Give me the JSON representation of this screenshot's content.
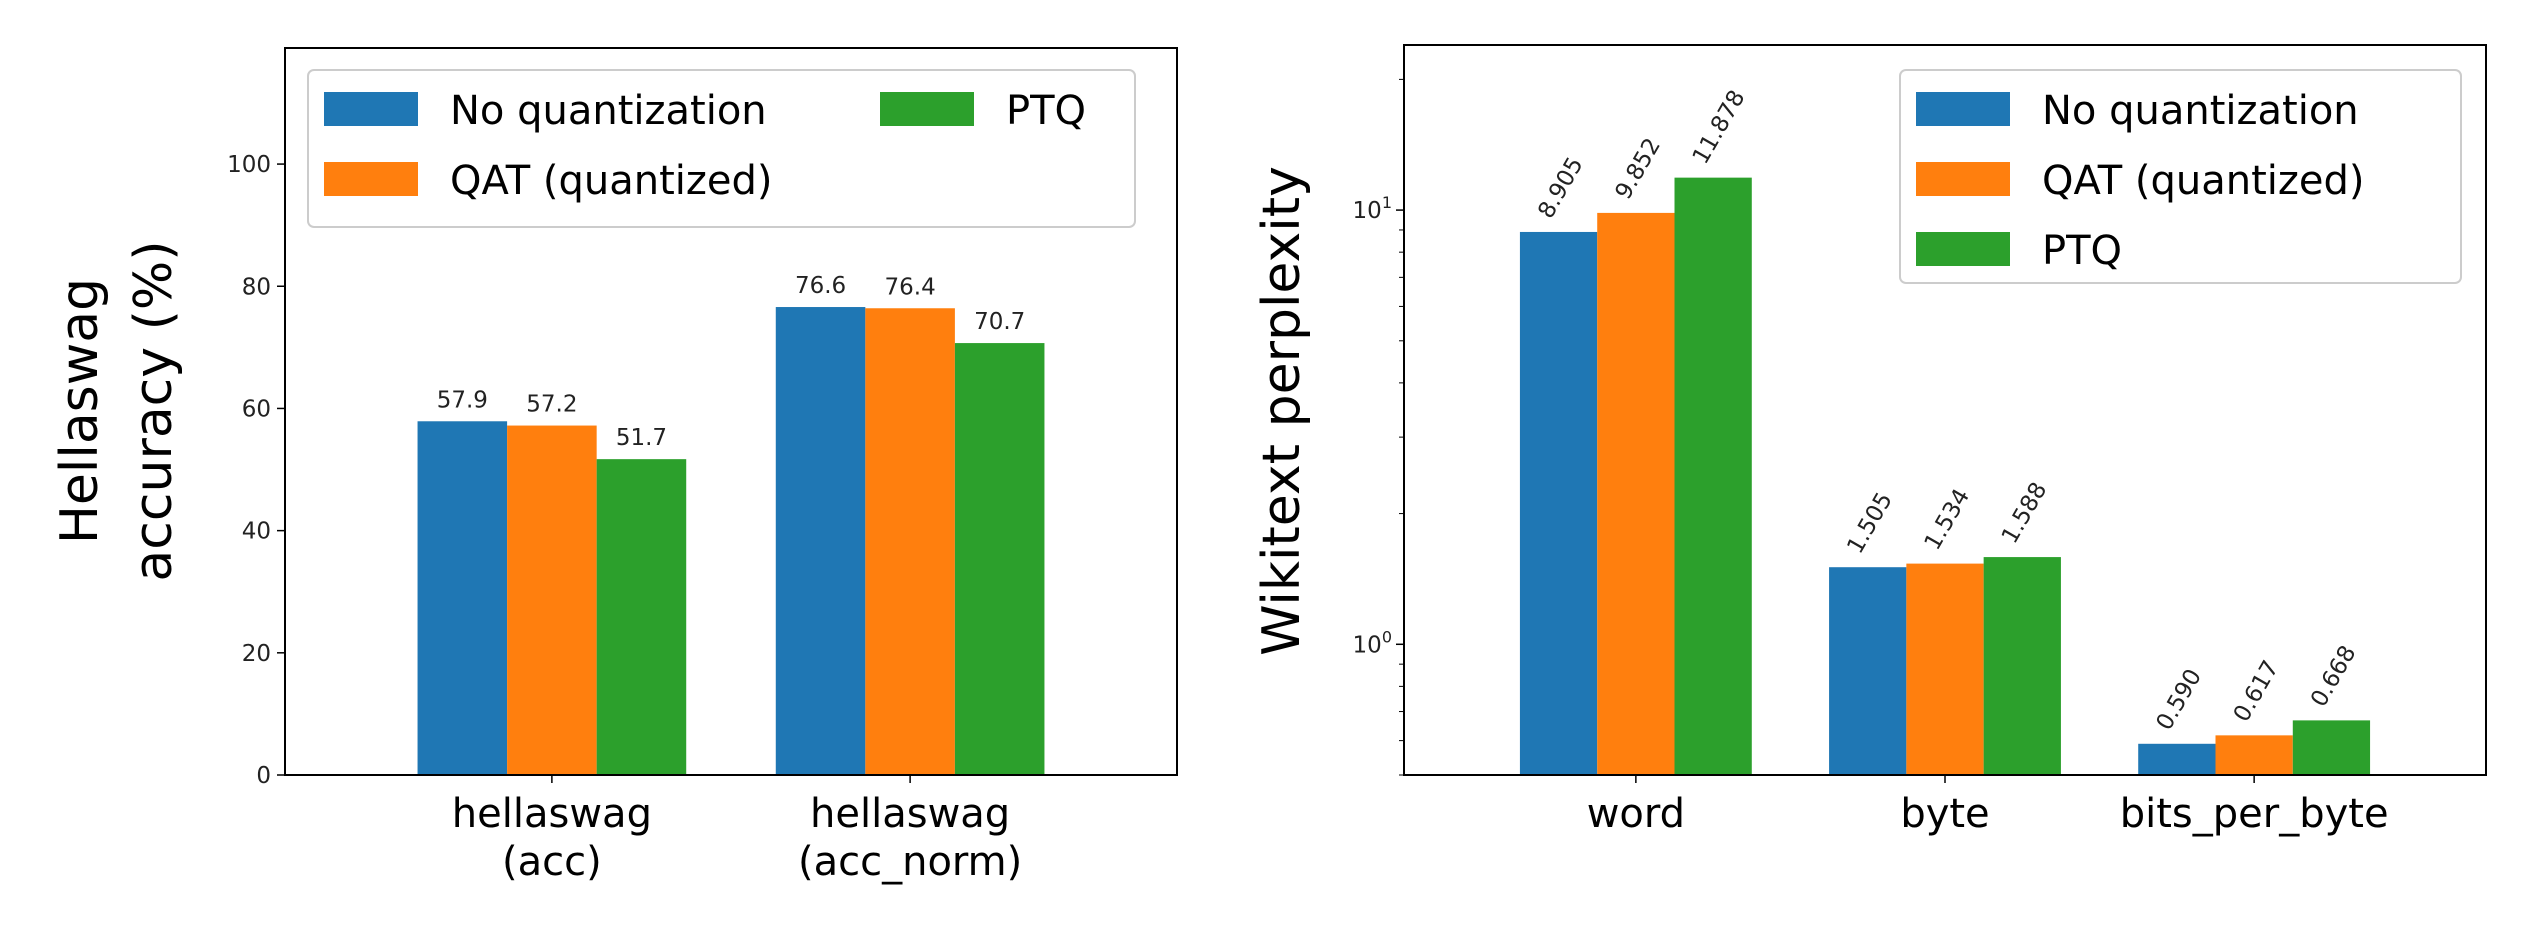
{
  "colors": {
    "No quantization": "#1f77b4",
    "QAT (quantized)": "#ff7f0e",
    "PTQ": "#2ca02c"
  },
  "chart_data": [
    {
      "type": "bar",
      "title": "",
      "xlabel": "",
      "ylabel": "Hellaswag\naccuracy (%)",
      "categories": [
        "hellaswag\n(acc)",
        "hellaswag\n(acc_norm)"
      ],
      "series": [
        {
          "name": "No quantization",
          "values": [
            57.9,
            76.6
          ]
        },
        {
          "name": "QAT (quantized)",
          "values": [
            57.2,
            76.4
          ]
        },
        {
          "name": "PTQ",
          "values": [
            51.7,
            70.7
          ]
        }
      ],
      "data_labels": [
        [
          "57.9",
          "76.6"
        ],
        [
          "57.2",
          "76.4"
        ],
        [
          "51.7",
          "70.7"
        ]
      ],
      "ylim": [
        0,
        119
      ],
      "yticks": [
        0,
        20,
        40,
        60,
        80,
        100
      ],
      "yscale": "linear",
      "grid": false,
      "legend": {
        "placement": "top",
        "columns": 2
      }
    },
    {
      "type": "bar",
      "title": "",
      "xlabel": "",
      "ylabel": "Wikitext perplexity",
      "categories": [
        "word",
        "byte",
        "bits_per_byte"
      ],
      "series": [
        {
          "name": "No quantization",
          "values": [
            8.905,
            1.505,
            0.59
          ]
        },
        {
          "name": "QAT (quantized)",
          "values": [
            9.852,
            1.534,
            0.617
          ]
        },
        {
          "name": "PTQ",
          "values": [
            11.878,
            1.588,
            0.668
          ]
        }
      ],
      "data_labels": [
        [
          "8.905",
          "1.505",
          "0.590"
        ],
        [
          "9.852",
          "1.534",
          "0.617"
        ],
        [
          "11.878",
          "1.588",
          "0.668"
        ]
      ],
      "ylim": [
        0.5,
        24
      ],
      "yticks": [
        1,
        10
      ],
      "ytick_labels": [
        "10^0",
        "10^1"
      ],
      "yscale": "log",
      "grid": false,
      "legend": {
        "placement": "upper right",
        "columns": 1
      }
    }
  ]
}
